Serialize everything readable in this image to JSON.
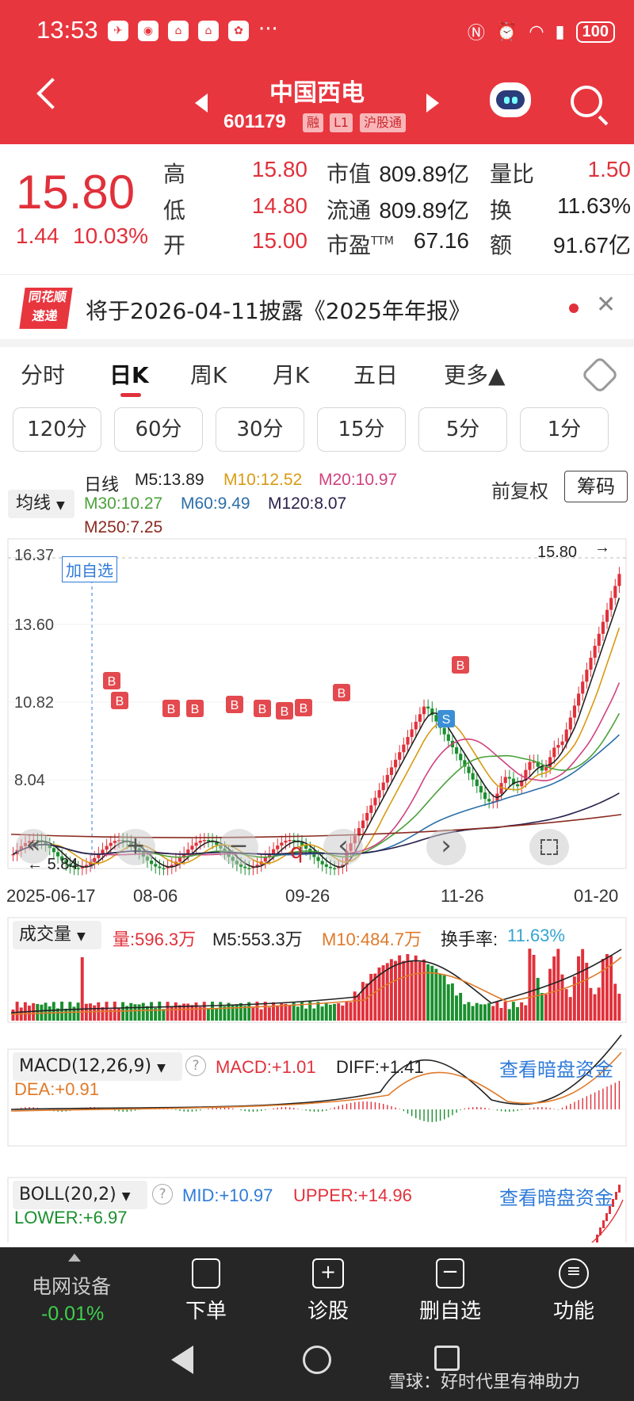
{
  "status_bar": {
    "time": "13:53",
    "battery": "100",
    "more": "···"
  },
  "header": {
    "name": "中国西电",
    "code": "601179",
    "tags": [
      "融",
      "L1",
      "沪股通"
    ]
  },
  "quote": {
    "price": "15.80",
    "change": "1.44",
    "change_pct": "10.03%",
    "labels": {
      "high": "高",
      "low": "低",
      "open": "开",
      "mkt_cap": "市值",
      "float": "流通",
      "pe": "市盈",
      "pe_sup": "TTM",
      "vol_ratio": "量比",
      "turnover": "换",
      "amount": "额"
    },
    "values": {
      "high": "15.80",
      "low": "14.80",
      "open": "15.00",
      "mkt_cap": "809.89亿",
      "float": "809.89亿",
      "pe": "67.16",
      "vol_ratio": "1.50",
      "turnover": "11.63%",
      "amount": "91.67亿"
    }
  },
  "notice": {
    "logo_top": "同花顺",
    "logo_bottom": "速递",
    "text": "将于2026-04-11披露《2025年年报》"
  },
  "tabs": [
    "分时",
    "日K",
    "周K",
    "月K",
    "五日",
    "更多▲"
  ],
  "periods": [
    "120分",
    "60分",
    "30分",
    "15分",
    "5分",
    "1分"
  ],
  "ma": {
    "selector": "均线",
    "title": "日线",
    "m5": "M5:13.89",
    "m10": "M10:12.52",
    "m20": "M20:10.97",
    "m30": "M30:10.27",
    "m60": "M60:9.49",
    "m120": "M120:8.07",
    "m250": "M250:7.25",
    "fuquan": "前复权",
    "chouma": "筹码"
  },
  "kline": {
    "add_watch": "加自选",
    "y_ticks": [
      "16.37",
      "13.60",
      "10.82",
      "8.04"
    ],
    "max_label": "15.80",
    "min_label": "5.84",
    "dates": [
      "2025-06-17",
      "08-06",
      "09-26",
      "11-26",
      "01-20"
    ],
    "controls": {
      "fast_back": "«",
      "zoom_in": "+",
      "zoom_out": "−",
      "prev": "‹",
      "next": "›",
      "q_mark": "q"
    },
    "markers_b": "B",
    "markers_s": "S"
  },
  "volume": {
    "selector": "成交量",
    "vol": "量:596.3万",
    "m5": "M5:553.3万",
    "m10": "M10:484.7万",
    "turnover_label": "换手率:",
    "turnover": "11.63%"
  },
  "macd": {
    "selector": "MACD(12,26,9)",
    "macd": "MACD:+1.01",
    "diff": "DIFF:+1.41",
    "dea": "DEA:+0.91",
    "link": "查看暗盘资金"
  },
  "boll": {
    "selector": "BOLL(20,2)",
    "mid": "MID:+10.97",
    "upper": "UPPER:+14.96",
    "lower": "LOWER:+6.97",
    "link": "查看暗盘资金"
  },
  "bottom": {
    "sector": "电网设备",
    "sector_chg": "-0.01%",
    "items": [
      "下单",
      "诊股",
      "删自选",
      "功能"
    ]
  },
  "watermark": "雪球：好时代里有神助力",
  "colors": {
    "up": "#e0313b",
    "down": "#1a8f2e",
    "header": "#e8363f"
  }
}
